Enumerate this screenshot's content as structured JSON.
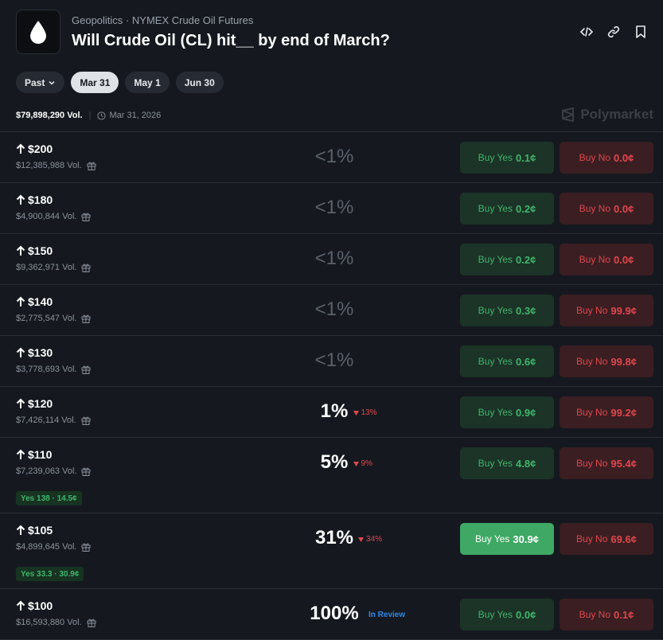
{
  "header": {
    "category": "Geopolitics",
    "subcategory": "NYMEX Crude Oil Futures",
    "title": "Will Crude Oil (CL) hit__ by end of March?"
  },
  "tabs": [
    "Past",
    "Mar 31",
    "May 1",
    "Jun 30"
  ],
  "summary": {
    "volume": "$79,898,290 Vol.",
    "date": "Mar 31, 2026",
    "brand": "Polymarket"
  },
  "buttons": {
    "yes": "Buy Yes",
    "no": "Buy No"
  },
  "markets": [
    {
      "label": "$200",
      "volume": "$12,385,988 Vol.",
      "chance": "<1%",
      "yes_price": "0.1¢",
      "no_price": "0.0¢"
    },
    {
      "label": "$180",
      "volume": "$4,900,844 Vol.",
      "chance": "<1%",
      "yes_price": "0.2¢",
      "no_price": "0.0¢"
    },
    {
      "label": "$150",
      "volume": "$9,362,971 Vol.",
      "chance": "<1%",
      "yes_price": "0.2¢",
      "no_price": "0.0¢"
    },
    {
      "label": "$140",
      "volume": "$2,775,547 Vol.",
      "chance": "<1%",
      "yes_price": "0.3¢",
      "no_price": "99.9¢"
    },
    {
      "label": "$130",
      "volume": "$3,778,693 Vol.",
      "chance": "<1%",
      "yes_price": "0.6¢",
      "no_price": "99.8¢"
    },
    {
      "label": "$120",
      "volume": "$7,426,114 Vol.",
      "chance": "1%",
      "change": "13%",
      "yes_price": "0.9¢",
      "no_price": "99.2¢"
    },
    {
      "label": "$110",
      "volume": "$7,239,063 Vol.",
      "chance": "5%",
      "change": "9%",
      "yes_price": "4.8¢",
      "no_price": "95.4¢",
      "position": "Yes 138 · 14.5¢"
    },
    {
      "label": "$105",
      "volume": "$4,899,645 Vol.",
      "chance": "31%",
      "change": "34%",
      "yes_price": "30.9¢",
      "no_price": "69.6¢",
      "position": "Yes 33.3 · 30.9¢",
      "yes_selected": true
    },
    {
      "label": "$100",
      "volume": "$16,593,880 Vol.",
      "chance": "100%",
      "status": "In Review",
      "yes_price": "0.0¢",
      "no_price": "0.1¢"
    }
  ]
}
